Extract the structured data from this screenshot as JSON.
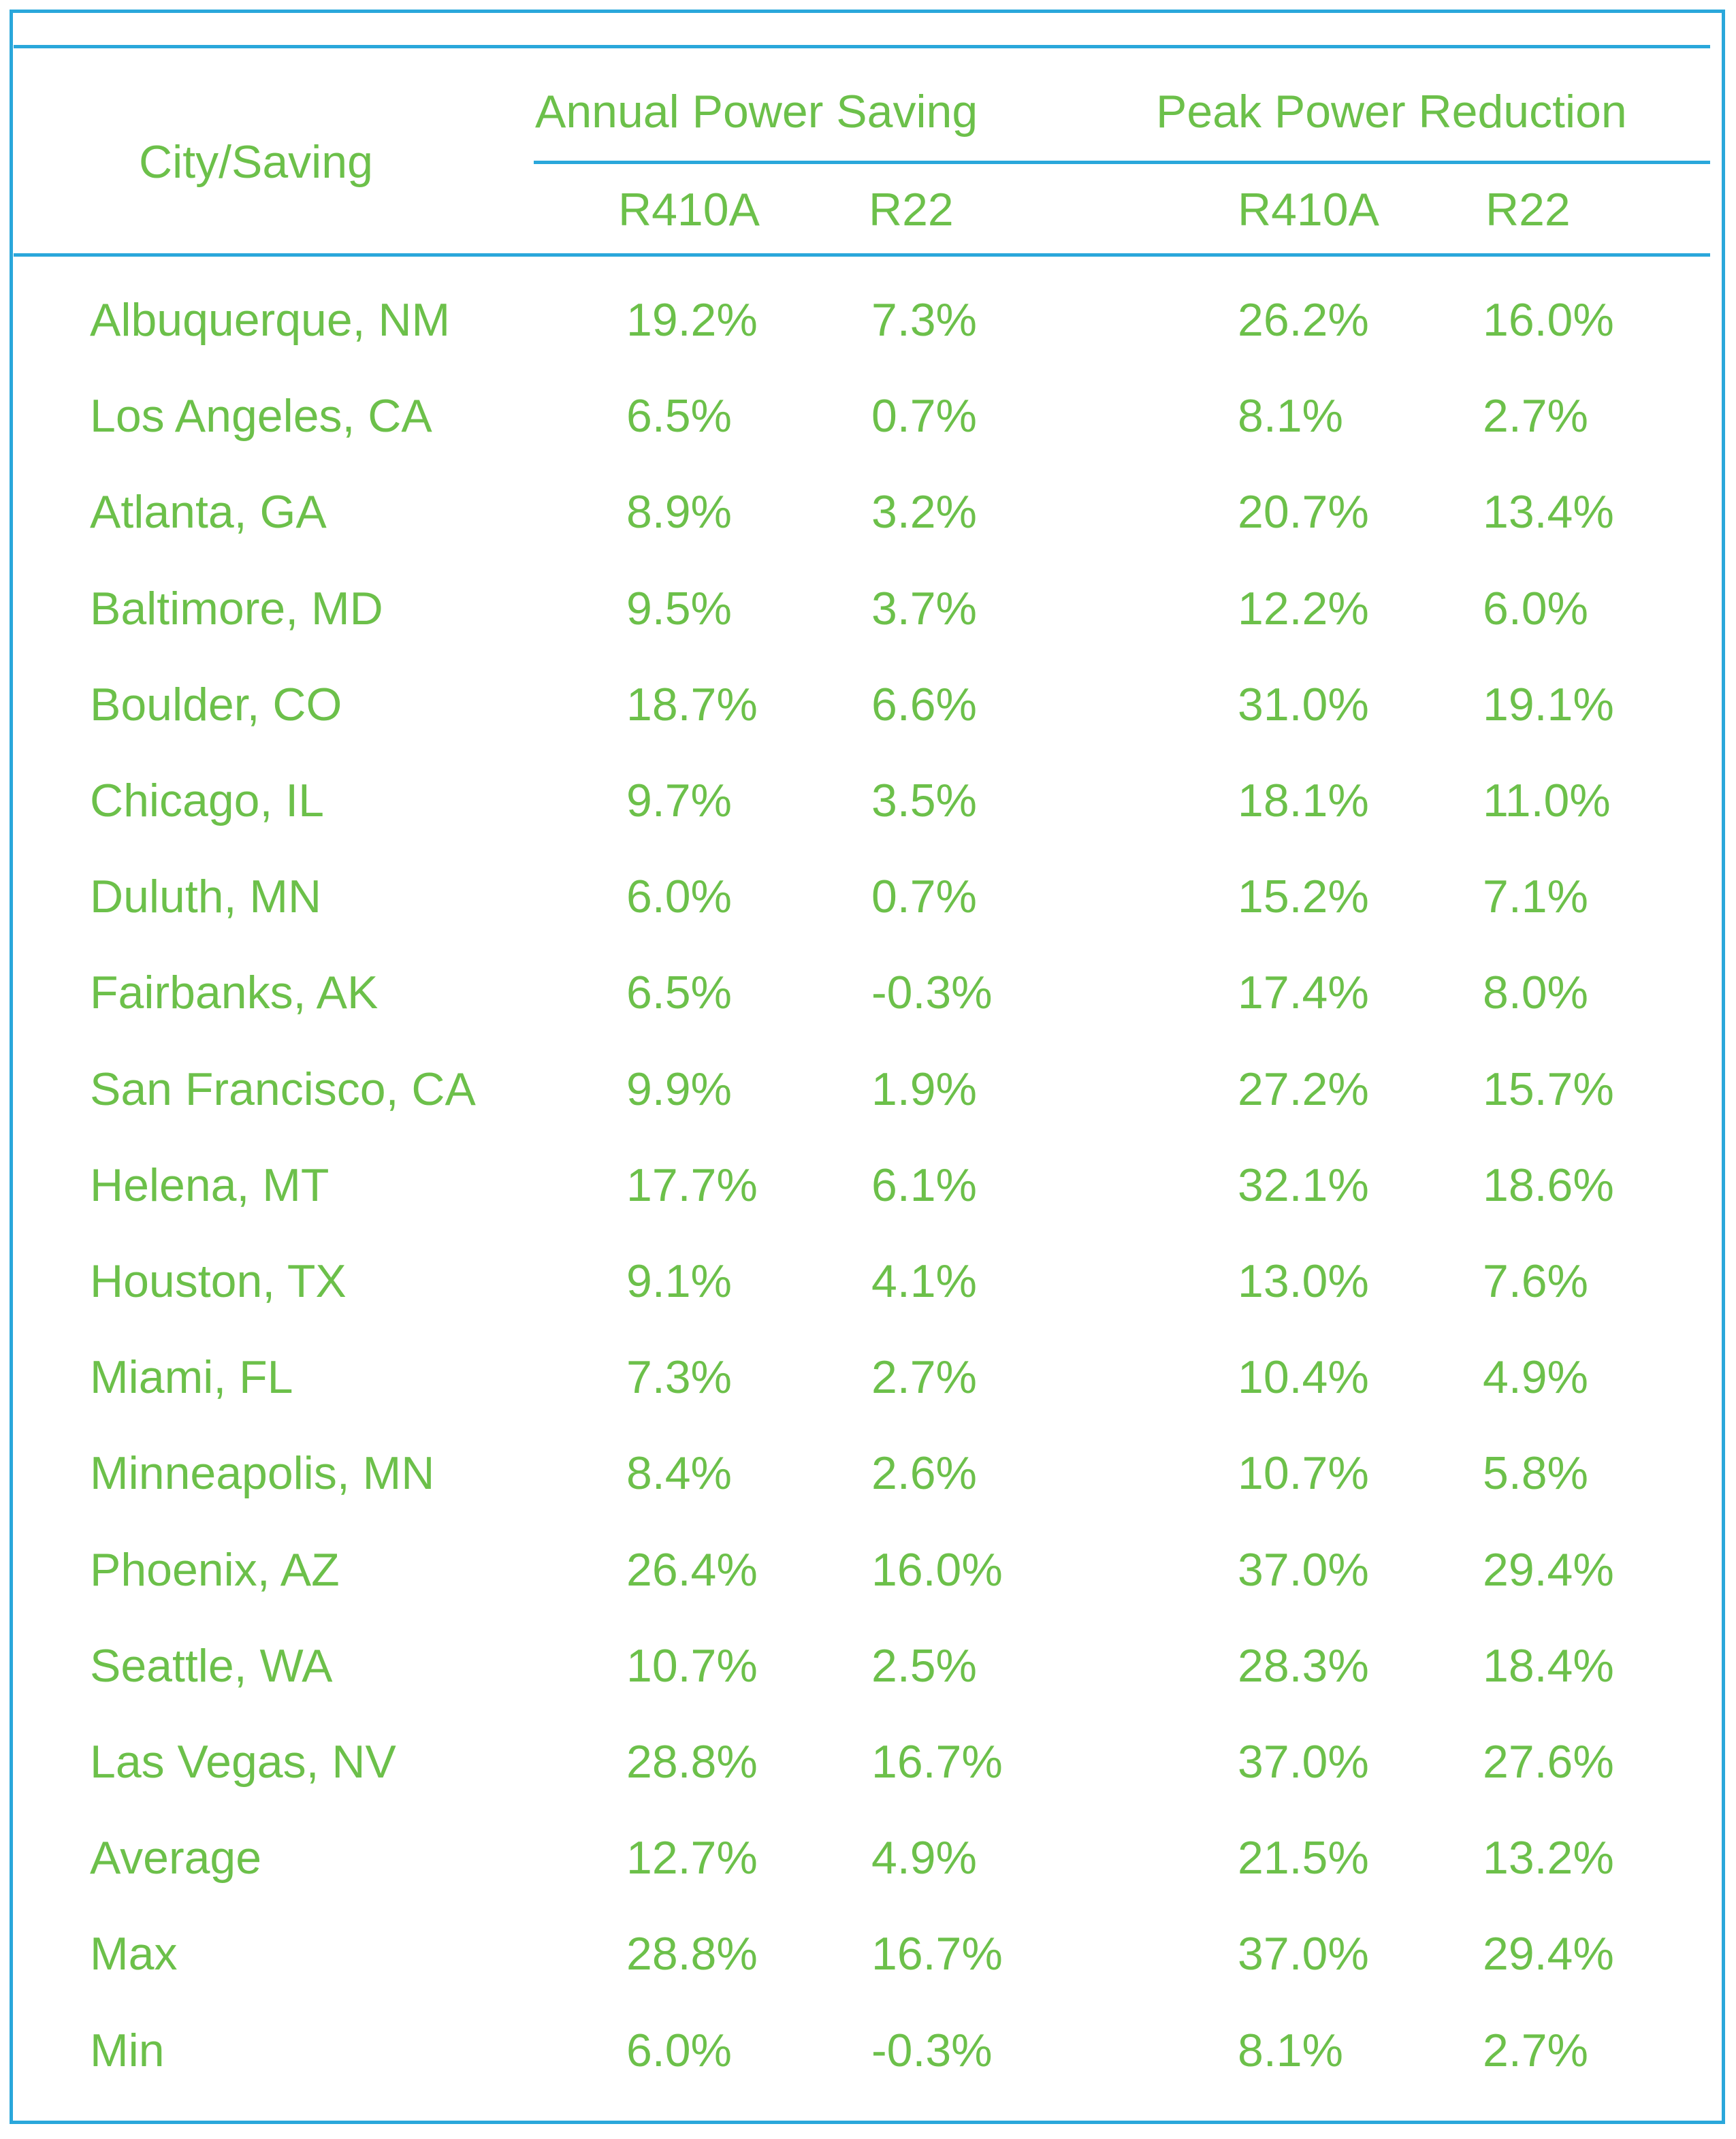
{
  "table": {
    "header": {
      "corner": "City/Saving",
      "groups": [
        "Annual Power Saving",
        "Peak Power Reduction"
      ],
      "subcolumns": [
        "R410A",
        "R22",
        "R410A",
        "R22"
      ]
    },
    "rows": [
      {
        "city": "Albuquerque, NM",
        "values": [
          "19.2%",
          "7.3%",
          "26.2%",
          "16.0%"
        ]
      },
      {
        "city": "Los Angeles, CA",
        "values": [
          "6.5%",
          "0.7%",
          "8.1%",
          "2.7%"
        ]
      },
      {
        "city": "Atlanta, GA",
        "values": [
          "8.9%",
          "3.2%",
          "20.7%",
          "13.4%"
        ]
      },
      {
        "city": "Baltimore, MD",
        "values": [
          "9.5%",
          "3.7%",
          "12.2%",
          "6.0%"
        ]
      },
      {
        "city": "Boulder, CO",
        "values": [
          "18.7%",
          "6.6%",
          "31.0%",
          "19.1%"
        ]
      },
      {
        "city": "Chicago, IL",
        "values": [
          "9.7%",
          "3.5%",
          "18.1%",
          "11.0%"
        ]
      },
      {
        "city": "Duluth, MN",
        "values": [
          "6.0%",
          "0.7%",
          "15.2%",
          "7.1%"
        ]
      },
      {
        "city": "Fairbanks, AK",
        "values": [
          "6.5%",
          "-0.3%",
          "17.4%",
          "8.0%"
        ]
      },
      {
        "city": "San Francisco, CA",
        "values": [
          "9.9%",
          "1.9%",
          "27.2%",
          "15.7%"
        ]
      },
      {
        "city": "Helena, MT",
        "values": [
          "17.7%",
          "6.1%",
          "32.1%",
          "18.6%"
        ]
      },
      {
        "city": "Houston, TX",
        "values": [
          "9.1%",
          "4.1%",
          "13.0%",
          "7.6%"
        ]
      },
      {
        "city": "Miami, FL",
        "values": [
          "7.3%",
          "2.7%",
          "10.4%",
          "4.9%"
        ]
      },
      {
        "city": "Minneapolis, MN",
        "values": [
          "8.4%",
          "2.6%",
          "10.7%",
          "5.8%"
        ]
      },
      {
        "city": "Phoenix, AZ",
        "values": [
          "26.4%",
          "16.0%",
          "37.0%",
          "29.4%"
        ]
      },
      {
        "city": "Seattle, WA",
        "values": [
          "10.7%",
          "2.5%",
          "28.3%",
          "18.4%"
        ]
      },
      {
        "city": "Las Vegas, NV",
        "values": [
          "28.8%",
          "16.7%",
          "37.0%",
          "27.6%"
        ]
      },
      {
        "city": "Average",
        "values": [
          "12.7%",
          "4.9%",
          "21.5%",
          "13.2%"
        ]
      },
      {
        "city": "Max",
        "values": [
          "28.8%",
          "16.7%",
          "37.0%",
          "29.4%"
        ]
      },
      {
        "city": "Min",
        "values": [
          "6.0%",
          "-0.3%",
          "8.1%",
          "2.7%"
        ]
      }
    ]
  },
  "colors": {
    "text": "#6cc04a",
    "rule": "#2aa7db"
  }
}
